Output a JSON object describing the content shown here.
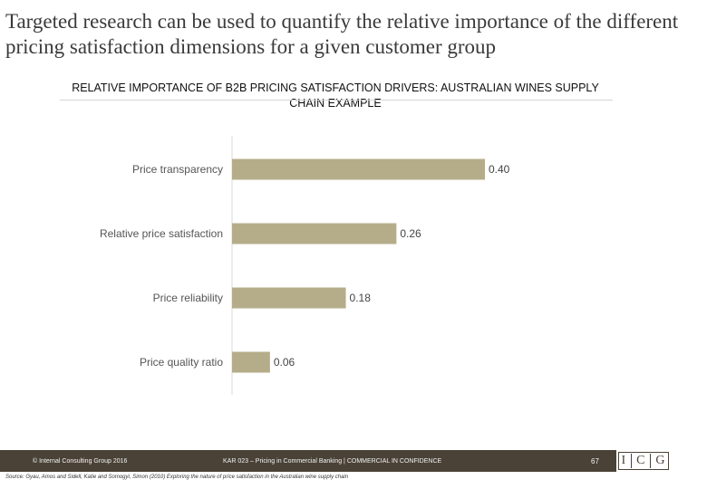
{
  "slide": {
    "title": "Targeted research can be used to quantify the relative importance of the different pricing satisfaction dimensions for a given customer group"
  },
  "chart_data": {
    "type": "bar",
    "orientation": "horizontal",
    "title": "RELATIVE IMPORTANCE OF B2B PRICING SATISFACTION DRIVERS: AUSTRALIAN WINES SUPPLY CHAIN EXAMPLE",
    "categories": [
      "Price transparency",
      "Relative price satisfaction",
      "Price reliability",
      "Price quality ratio"
    ],
    "values": [
      0.4,
      0.26,
      0.18,
      0.06
    ],
    "value_labels": [
      "0.40",
      "0.26",
      "0.18",
      "0.06"
    ],
    "xlim": [
      0,
      0.4
    ],
    "bar_color": "#b5ad8a",
    "grid": false,
    "legend": "none"
  },
  "footer": {
    "copyright": "© Internal Consulting Group 2016",
    "center_text": "KAR 023 – Pricing in Commercial Banking | COMMERCIAL IN CONFIDENCE",
    "page_number": "67",
    "logo_letters": [
      "I",
      "C",
      "G"
    ],
    "bar_color": "#4a4237"
  },
  "source": "Source: Gyau, Amos and Sidell, Katie and Somogyi, Simon (2010) Exploring the nature of price satisfaction in the Australian wine supply chain"
}
